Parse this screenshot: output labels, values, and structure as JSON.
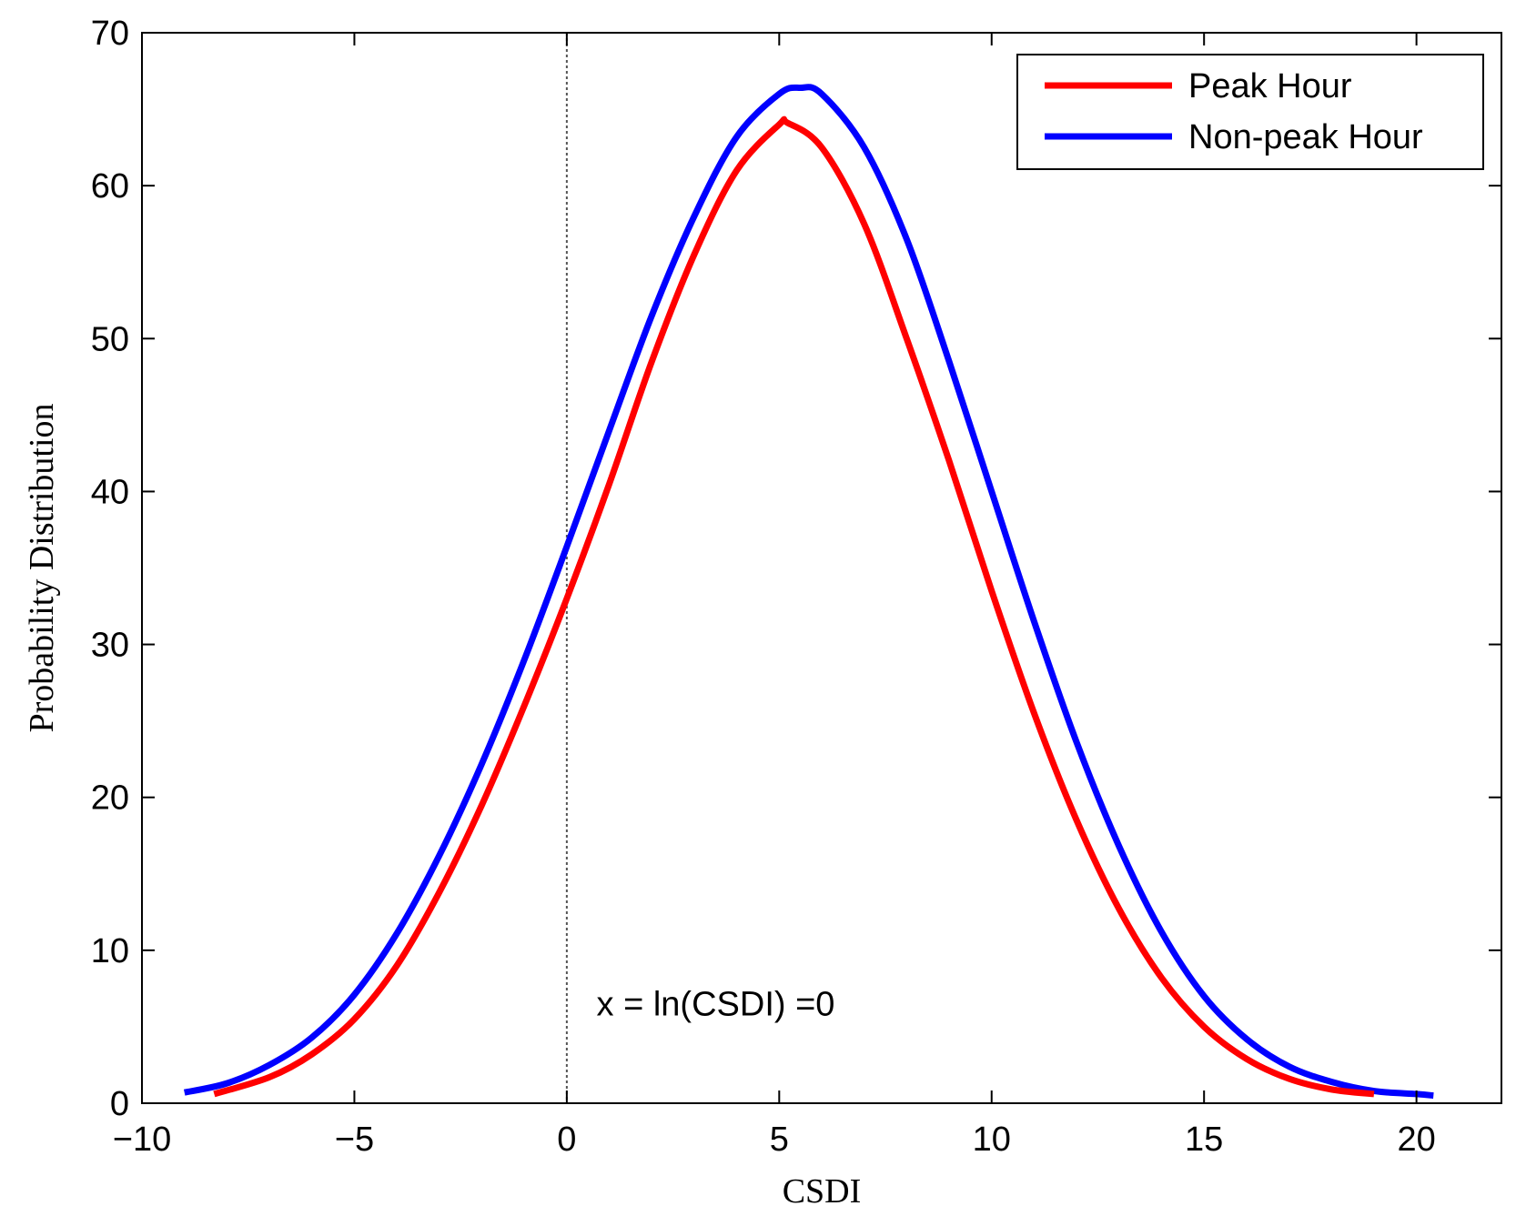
{
  "chart_data": {
    "type": "line",
    "title": "",
    "xlabel": "CSDI",
    "ylabel": "Probability Distribution",
    "xlim": [
      -10,
      22
    ],
    "ylim": [
      0,
      70
    ],
    "xticks": [
      -10,
      -5,
      0,
      5,
      10,
      15,
      20
    ],
    "xtick_labels": [
      "−10",
      "−5",
      "0",
      "5",
      "10",
      "15",
      "20"
    ],
    "yticks": [
      0,
      10,
      20,
      30,
      40,
      50,
      60,
      70
    ],
    "ytick_labels": [
      "0",
      "10",
      "20",
      "30",
      "40",
      "50",
      "60",
      "70"
    ],
    "grid": false,
    "legend_position": "top-right",
    "series": [
      {
        "name": "Peak Hour",
        "color": "#ff0000",
        "x": [
          -8.3,
          -7,
          -6,
          -5,
          -4,
          -3,
          -2,
          -1,
          0,
          1,
          2,
          3,
          4,
          5,
          5.2,
          6,
          7,
          8,
          9,
          10,
          11,
          12,
          13,
          14,
          15,
          16,
          17,
          18,
          19
        ],
        "y": [
          0.6,
          1.7,
          3.2,
          5.5,
          9.0,
          13.8,
          19.5,
          26.0,
          33.0,
          40.5,
          48.5,
          55.5,
          61.0,
          64.0,
          64.1,
          62.5,
          57.5,
          50.0,
          42.0,
          33.5,
          25.5,
          18.5,
          12.7,
          8.2,
          5.0,
          2.9,
          1.6,
          0.9,
          0.6
        ]
      },
      {
        "name": "Non-peak Hour",
        "color": "#0000ff",
        "x": [
          -9,
          -8,
          -7,
          -6,
          -5,
          -4,
          -3,
          -2,
          -1,
          0,
          1,
          2,
          3,
          4,
          5,
          5.5,
          6,
          7,
          8,
          9,
          10,
          11,
          12,
          13,
          14,
          15,
          16,
          17,
          18,
          19,
          20,
          20.4
        ],
        "y": [
          0.7,
          1.3,
          2.5,
          4.3,
          7.1,
          11.1,
          16.2,
          22.2,
          29.0,
          36.4,
          44.0,
          51.5,
          58.0,
          63.2,
          66.0,
          66.4,
          66.0,
          62.5,
          56.5,
          48.5,
          40.0,
          31.5,
          23.6,
          16.8,
          11.2,
          7.0,
          4.2,
          2.4,
          1.4,
          0.8,
          0.6,
          0.5
        ]
      }
    ],
    "reference_line": {
      "x": 0,
      "style": "dotted",
      "color": "#555555"
    },
    "annotations": [
      {
        "text": "x = ln(CSDI) =0",
        "x": 0.7,
        "y": 6.5
      }
    ]
  }
}
